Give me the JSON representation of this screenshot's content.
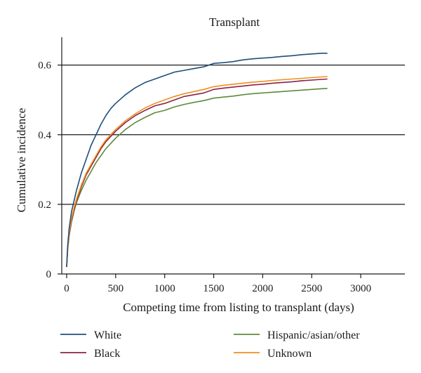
{
  "chart_data": {
    "type": "line",
    "title": "Transplant",
    "xlabel": "Competing time from listing to transplant (days)",
    "ylabel": "Cumulative incidence",
    "xlim": [
      -50,
      3450
    ],
    "ylim": [
      0,
      0.68
    ],
    "xticks": [
      0,
      500,
      1000,
      1500,
      2000,
      2500,
      3000
    ],
    "yticks": [
      0,
      0.2,
      0.4,
      0.6
    ],
    "xtick_labels": [
      "0",
      "500",
      "1000",
      "1500",
      "2000",
      "2500",
      "3000"
    ],
    "ytick_labels": [
      "0",
      "0.2",
      "0.4",
      "0.6"
    ],
    "grid": "horizontal at y ticks",
    "legend_position": "bottom",
    "series": [
      {
        "name": "White",
        "color": "#1f4e79",
        "points": [
          [
            0,
            0.02
          ],
          [
            10,
            0.08
          ],
          [
            25,
            0.13
          ],
          [
            50,
            0.18
          ],
          [
            75,
            0.21
          ],
          [
            100,
            0.24
          ],
          [
            150,
            0.29
          ],
          [
            200,
            0.33
          ],
          [
            250,
            0.37
          ],
          [
            300,
            0.4
          ],
          [
            350,
            0.43
          ],
          [
            400,
            0.455
          ],
          [
            450,
            0.475
          ],
          [
            500,
            0.49
          ],
          [
            600,
            0.515
          ],
          [
            700,
            0.535
          ],
          [
            800,
            0.55
          ],
          [
            900,
            0.56
          ],
          [
            1000,
            0.57
          ],
          [
            1100,
            0.58
          ],
          [
            1200,
            0.585
          ],
          [
            1300,
            0.59
          ],
          [
            1400,
            0.595
          ],
          [
            1500,
            0.605
          ],
          [
            1600,
            0.607
          ],
          [
            1700,
            0.61
          ],
          [
            1800,
            0.615
          ],
          [
            1900,
            0.618
          ],
          [
            2000,
            0.62
          ],
          [
            2100,
            0.622
          ],
          [
            2200,
            0.625
          ],
          [
            2300,
            0.627
          ],
          [
            2400,
            0.63
          ],
          [
            2500,
            0.632
          ],
          [
            2600,
            0.634
          ],
          [
            2660,
            0.634
          ]
        ]
      },
      {
        "name": "Black",
        "color": "#8b2346",
        "points": [
          [
            0,
            0.02
          ],
          [
            10,
            0.07
          ],
          [
            25,
            0.11
          ],
          [
            50,
            0.155
          ],
          [
            75,
            0.185
          ],
          [
            100,
            0.21
          ],
          [
            150,
            0.25
          ],
          [
            200,
            0.285
          ],
          [
            250,
            0.31
          ],
          [
            300,
            0.335
          ],
          [
            350,
            0.36
          ],
          [
            400,
            0.38
          ],
          [
            450,
            0.395
          ],
          [
            500,
            0.41
          ],
          [
            600,
            0.435
          ],
          [
            700,
            0.455
          ],
          [
            800,
            0.47
          ],
          [
            900,
            0.483
          ],
          [
            1000,
            0.49
          ],
          [
            1100,
            0.5
          ],
          [
            1200,
            0.51
          ],
          [
            1300,
            0.515
          ],
          [
            1400,
            0.52
          ],
          [
            1500,
            0.53
          ],
          [
            1600,
            0.534
          ],
          [
            1700,
            0.537
          ],
          [
            1800,
            0.54
          ],
          [
            1900,
            0.543
          ],
          [
            2000,
            0.545
          ],
          [
            2100,
            0.548
          ],
          [
            2200,
            0.55
          ],
          [
            2300,
            0.552
          ],
          [
            2400,
            0.555
          ],
          [
            2500,
            0.557
          ],
          [
            2600,
            0.559
          ],
          [
            2660,
            0.56
          ]
        ]
      },
      {
        "name": "Hispanic/asian/other",
        "color": "#5e8a3a",
        "points": [
          [
            0,
            0.02
          ],
          [
            10,
            0.07
          ],
          [
            25,
            0.11
          ],
          [
            50,
            0.15
          ],
          [
            75,
            0.18
          ],
          [
            100,
            0.205
          ],
          [
            150,
            0.24
          ],
          [
            200,
            0.27
          ],
          [
            250,
            0.295
          ],
          [
            300,
            0.32
          ],
          [
            350,
            0.34
          ],
          [
            400,
            0.36
          ],
          [
            450,
            0.375
          ],
          [
            500,
            0.39
          ],
          [
            600,
            0.415
          ],
          [
            700,
            0.435
          ],
          [
            800,
            0.45
          ],
          [
            900,
            0.463
          ],
          [
            1000,
            0.47
          ],
          [
            1100,
            0.48
          ],
          [
            1200,
            0.487
          ],
          [
            1300,
            0.493
          ],
          [
            1400,
            0.498
          ],
          [
            1500,
            0.505
          ],
          [
            1600,
            0.508
          ],
          [
            1700,
            0.511
          ],
          [
            1800,
            0.515
          ],
          [
            1900,
            0.518
          ],
          [
            2000,
            0.52
          ],
          [
            2100,
            0.522
          ],
          [
            2200,
            0.524
          ],
          [
            2300,
            0.526
          ],
          [
            2400,
            0.528
          ],
          [
            2500,
            0.53
          ],
          [
            2600,
            0.532
          ],
          [
            2660,
            0.533
          ]
        ]
      },
      {
        "name": "Unknown",
        "color": "#f28e1c",
        "points": [
          [
            0,
            0.02
          ],
          [
            10,
            0.07
          ],
          [
            25,
            0.115
          ],
          [
            50,
            0.16
          ],
          [
            75,
            0.19
          ],
          [
            100,
            0.215
          ],
          [
            150,
            0.255
          ],
          [
            200,
            0.29
          ],
          [
            250,
            0.315
          ],
          [
            300,
            0.34
          ],
          [
            350,
            0.365
          ],
          [
            400,
            0.385
          ],
          [
            450,
            0.4
          ],
          [
            500,
            0.415
          ],
          [
            600,
            0.44
          ],
          [
            700,
            0.46
          ],
          [
            800,
            0.477
          ],
          [
            900,
            0.49
          ],
          [
            1000,
            0.5
          ],
          [
            1100,
            0.51
          ],
          [
            1200,
            0.518
          ],
          [
            1300,
            0.524
          ],
          [
            1400,
            0.53
          ],
          [
            1500,
            0.538
          ],
          [
            1600,
            0.542
          ],
          [
            1700,
            0.545
          ],
          [
            1800,
            0.548
          ],
          [
            1900,
            0.551
          ],
          [
            2000,
            0.553
          ],
          [
            2100,
            0.556
          ],
          [
            2200,
            0.558
          ],
          [
            2300,
            0.56
          ],
          [
            2400,
            0.562
          ],
          [
            2500,
            0.564
          ],
          [
            2600,
            0.566
          ],
          [
            2660,
            0.567
          ]
        ]
      }
    ]
  }
}
